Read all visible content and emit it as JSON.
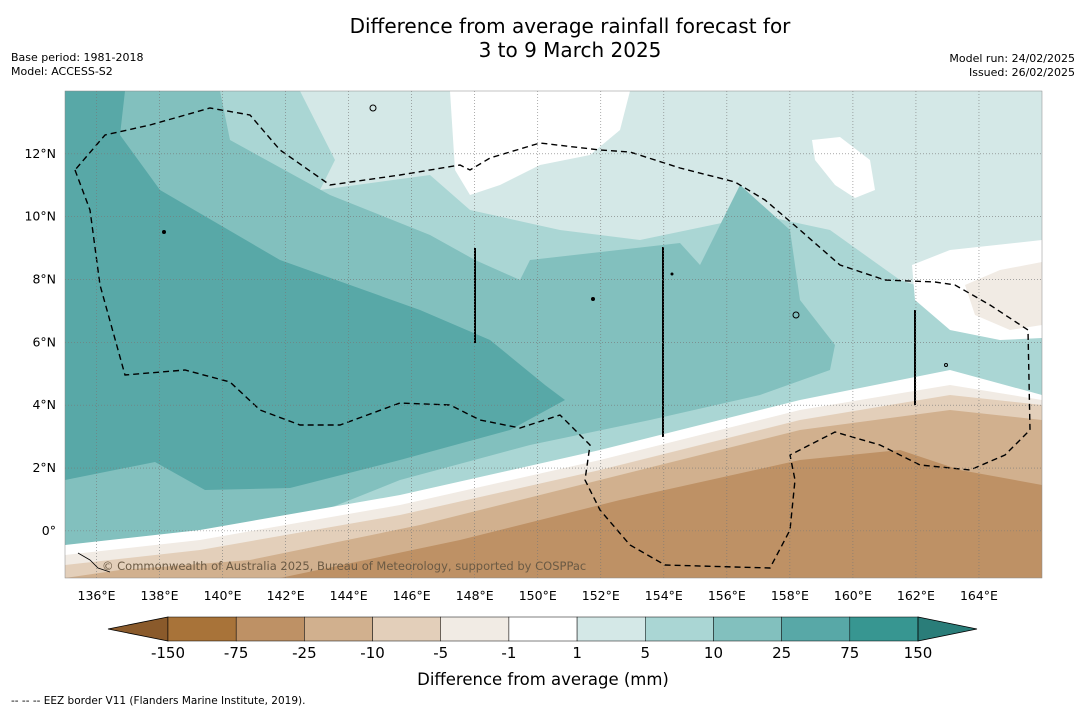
{
  "title": {
    "line1": "Difference from average rainfall forecast for",
    "line2": "3 to 9 March 2025"
  },
  "meta_left": {
    "base_period": "Base period: 1981-2018",
    "model": "Model: ACCESS-S2"
  },
  "meta_right": {
    "model_run": "Model run: 24/02/2025",
    "issued": "Issued: 26/02/2025"
  },
  "map": {
    "lon_range": [
      135,
      166
    ],
    "lat_range": [
      -1.5,
      14
    ],
    "lon_ticks": [
      "136°E",
      "138°E",
      "140°E",
      "142°E",
      "144°E",
      "146°E",
      "148°E",
      "150°E",
      "152°E",
      "154°E",
      "156°E",
      "158°E",
      "160°E",
      "162°E",
      "164°E"
    ],
    "lat_ticks": [
      "0°",
      "2°N",
      "4°N",
      "6°N",
      "8°N",
      "10°N",
      "12°N"
    ],
    "copyright": "© Commonwealth of Australia 2025, Bureau of Meteorology, supported by COSPPac"
  },
  "colorbar": {
    "labels": [
      "-150",
      "-75",
      "-25",
      "-10",
      "-5",
      "-1",
      "1",
      "5",
      "10",
      "25",
      "75",
      "150"
    ],
    "colors": [
      "#a87339",
      "#be9165",
      "#d1b08e",
      "#e3cfba",
      "#f1ebe4",
      "#ffffff",
      "#d4e8e7",
      "#aad6d4",
      "#82c0be",
      "#58a8a7",
      "#379691"
    ],
    "below_color": "#8a5a2b",
    "above_color": "#2a7d79",
    "label": "Difference from average (mm)"
  },
  "footnote": "--  --  -- EEZ border V11 (Flanders Marine Institute, 2019)."
}
